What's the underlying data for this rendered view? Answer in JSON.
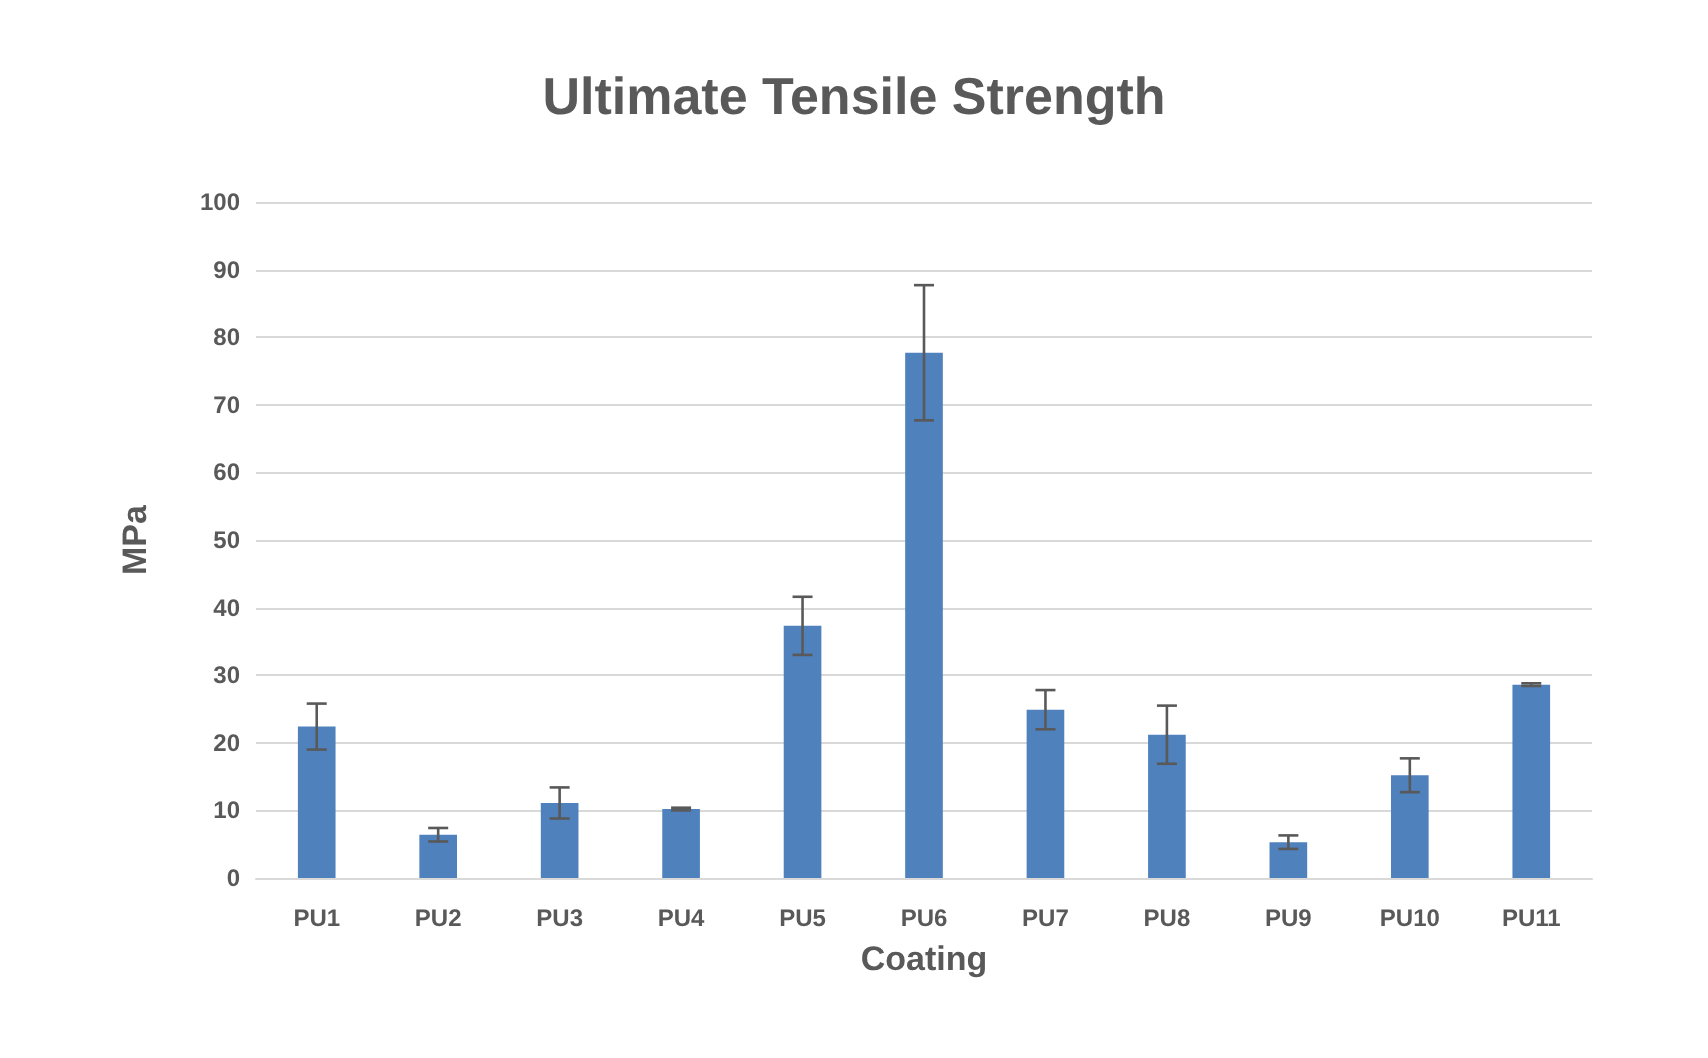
{
  "chart_data": {
    "type": "bar",
    "title": "Ultimate Tensile Strength",
    "xlabel": "Coating",
    "ylabel": "MPa",
    "categories": [
      "PU1",
      "PU2",
      "PU3",
      "PU4",
      "PU5",
      "PU6",
      "PU7",
      "PU8",
      "PU9",
      "PU10",
      "PU11"
    ],
    "values": [
      22.4,
      6.4,
      11.1,
      10.2,
      37.3,
      77.7,
      24.9,
      21.2,
      5.3,
      15.2,
      28.6
    ],
    "errors": [
      3.4,
      1,
      2.3,
      0.2,
      4.3,
      10,
      2.9,
      4.3,
      1,
      2.5,
      0.2
    ],
    "color": "#4f81bd",
    "ylim": [
      0,
      100
    ],
    "yticks": [
      0,
      10,
      20,
      30,
      40,
      50,
      60,
      70,
      80,
      90,
      100
    ],
    "grid": "y"
  }
}
